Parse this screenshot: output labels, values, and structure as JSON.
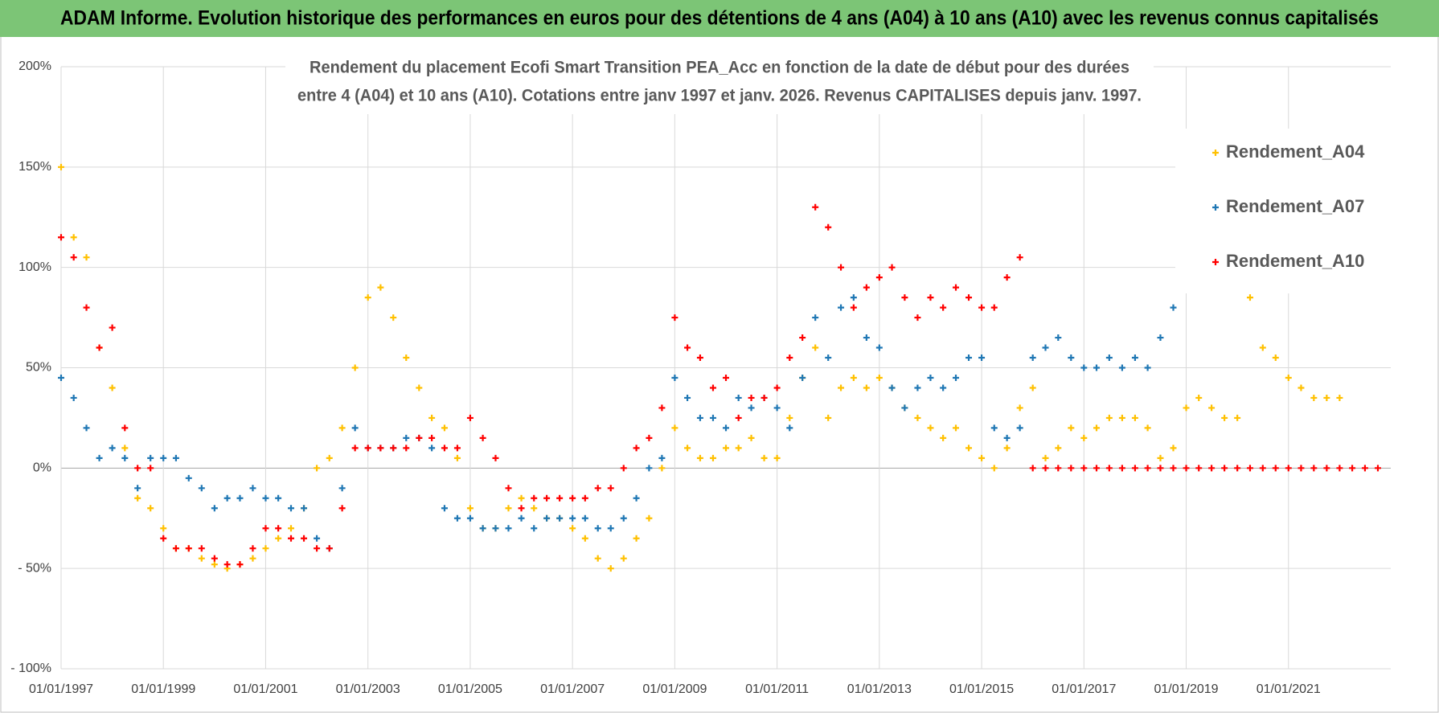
{
  "header": {
    "title": "ADAM Informe. Evolution historique des performances en euros pour des détentions de 4 ans (A04) à 10 ans (A10) avec les revenus connus capitalisés"
  },
  "chart_data": {
    "type": "scatter",
    "title": [
      "Rendement du placement Ecofi Smart Transition PEA_Acc en fonction de la date de début pour des durées",
      "entre 4 (A04) et 10 ans (A10). Cotations entre janv 1997 et janv. 2026. Revenus CAPITALISES depuis janv. 1997."
    ],
    "x": [
      "1997-01-01",
      "1997-04-01",
      "1997-07-01",
      "1997-10-01",
      "1998-01-01",
      "1998-04-01",
      "1998-07-01",
      "1998-10-01",
      "1999-01-01",
      "1999-04-01",
      "1999-07-01",
      "1999-10-01",
      "2000-01-01",
      "2000-04-01",
      "2000-07-01",
      "2000-10-01",
      "2001-01-01",
      "2001-04-01",
      "2001-07-01",
      "2001-10-01",
      "2002-01-01",
      "2002-04-01",
      "2002-07-01",
      "2002-10-01",
      "2003-01-01",
      "2003-04-01",
      "2003-07-01",
      "2003-10-01",
      "2004-01-01",
      "2004-04-01",
      "2004-07-01",
      "2004-10-01",
      "2005-01-01",
      "2005-04-01",
      "2005-07-01",
      "2005-10-01",
      "2006-01-01",
      "2006-04-01",
      "2006-07-01",
      "2006-10-01",
      "2007-01-01",
      "2007-04-01",
      "2007-07-01",
      "2007-10-01",
      "2008-01-01",
      "2008-04-01",
      "2008-07-01",
      "2008-10-01",
      "2009-01-01",
      "2009-04-01",
      "2009-07-01",
      "2009-10-01",
      "2010-01-01",
      "2010-04-01",
      "2010-07-01",
      "2010-10-01",
      "2011-01-01",
      "2011-04-01",
      "2011-07-01",
      "2011-10-01",
      "2012-01-01",
      "2012-04-01",
      "2012-07-01",
      "2012-10-01",
      "2013-01-01",
      "2013-04-01",
      "2013-07-01",
      "2013-10-01",
      "2014-01-01",
      "2014-04-01",
      "2014-07-01",
      "2014-10-01",
      "2015-01-01",
      "2015-04-01",
      "2015-07-01",
      "2015-10-01",
      "2016-01-01",
      "2016-04-01",
      "2016-07-01",
      "2016-10-01",
      "2017-01-01",
      "2017-04-01",
      "2017-07-01",
      "2017-10-01",
      "2018-01-01",
      "2018-04-01",
      "2018-07-01",
      "2018-10-01",
      "2019-01-01",
      "2019-04-01",
      "2019-07-01",
      "2019-10-01",
      "2020-01-01",
      "2020-04-01",
      "2020-07-01",
      "2020-10-01",
      "2021-01-01",
      "2021-04-01",
      "2021-07-01",
      "2021-10-01",
      "2022-01-01",
      "2022-04-01",
      "2022-07-01",
      "2022-10-01"
    ],
    "series": [
      {
        "name": "Rendement_A04",
        "color": "#ffc000",
        "values": [
          150,
          115,
          105,
          60,
          40,
          10,
          -15,
          -20,
          -30,
          -40,
          -40,
          -45,
          -48,
          -50,
          -48,
          -45,
          -40,
          -35,
          -30,
          -20,
          0,
          5,
          20,
          50,
          85,
          90,
          75,
          55,
          40,
          25,
          20,
          5,
          -20,
          -30,
          -30,
          -20,
          -15,
          -20,
          -25,
          -25,
          -30,
          -35,
          -45,
          -50,
          -45,
          -35,
          -25,
          0,
          20,
          10,
          5,
          5,
          10,
          10,
          15,
          5,
          5,
          25,
          45,
          60,
          25,
          40,
          45,
          40,
          45,
          40,
          30,
          25,
          20,
          15,
          20,
          10,
          5,
          0,
          10,
          30,
          40,
          5,
          10,
          20,
          15,
          20,
          25,
          25,
          25,
          20,
          5,
          10,
          30,
          35,
          30,
          25,
          25,
          85,
          60,
          55,
          45,
          40,
          35,
          35,
          35,
          null,
          null,
          null
        ]
      },
      {
        "name": "Rendement_A07",
        "color": "#1f77b4",
        "values": [
          45,
          35,
          20,
          5,
          10,
          5,
          -10,
          5,
          5,
          5,
          -5,
          -10,
          -20,
          -15,
          -15,
          -10,
          -15,
          -15,
          -20,
          -20,
          -35,
          -40,
          -10,
          20,
          10,
          10,
          10,
          15,
          15,
          10,
          -20,
          -25,
          -25,
          -30,
          -30,
          -30,
          -25,
          -30,
          -25,
          -25,
          -25,
          -25,
          -30,
          -30,
          -25,
          -15,
          0,
          5,
          45,
          35,
          25,
          25,
          20,
          35,
          30,
          35,
          30,
          20,
          45,
          75,
          55,
          80,
          85,
          65,
          60,
          40,
          30,
          40,
          45,
          40,
          45,
          55,
          55,
          20,
          15,
          20,
          55,
          60,
          65,
          55,
          50,
          50,
          55,
          50,
          55,
          50,
          65,
          80,
          null,
          null,
          null,
          null,
          null,
          null,
          null,
          null,
          null,
          null,
          null,
          null,
          null,
          null,
          null,
          null
        ]
      },
      {
        "name": "Rendement_A10",
        "color": "#ff0000",
        "values": [
          115,
          105,
          80,
          60,
          70,
          20,
          0,
          0,
          -35,
          -40,
          -40,
          -40,
          -45,
          -48,
          -48,
          -40,
          -30,
          -30,
          -35,
          -35,
          -40,
          -40,
          -20,
          10,
          10,
          10,
          10,
          10,
          15,
          15,
          10,
          10,
          25,
          15,
          5,
          -10,
          -20,
          -15,
          -15,
          -15,
          -15,
          -15,
          -10,
          -10,
          0,
          10,
          15,
          30,
          75,
          60,
          55,
          40,
          45,
          25,
          35,
          35,
          40,
          55,
          65,
          130,
          120,
          100,
          80,
          90,
          95,
          100,
          85,
          75,
          85,
          80,
          90,
          85,
          80,
          80,
          95,
          105,
          0,
          0,
          0,
          0,
          0,
          0,
          0,
          0,
          0,
          0,
          0,
          0,
          0,
          0,
          0,
          0,
          0,
          0,
          0,
          0,
          0,
          0,
          0,
          0,
          0,
          0,
          0,
          0
        ]
      }
    ],
    "xlim": [
      "1997-01-01",
      "2023-01-01"
    ],
    "xticks": [
      {
        "value": "1997-01-01",
        "label": "01/01/1997"
      },
      {
        "value": "1999-01-01",
        "label": "01/01/1999"
      },
      {
        "value": "2001-01-01",
        "label": "01/01/2001"
      },
      {
        "value": "2003-01-01",
        "label": "01/01/2003"
      },
      {
        "value": "2005-01-01",
        "label": "01/01/2005"
      },
      {
        "value": "2007-01-01",
        "label": "01/01/2007"
      },
      {
        "value": "2009-01-01",
        "label": "01/01/2009"
      },
      {
        "value": "2011-01-01",
        "label": "01/01/2011"
      },
      {
        "value": "2013-01-01",
        "label": "01/01/2013"
      },
      {
        "value": "2015-01-01",
        "label": "01/01/2015"
      },
      {
        "value": "2017-01-01",
        "label": "01/01/2017"
      },
      {
        "value": "2019-01-01",
        "label": "01/01/2019"
      },
      {
        "value": "2021-01-01",
        "label": "01/01/2021"
      }
    ],
    "ylim": [
      -100,
      200
    ],
    "yticks": [
      {
        "value": -100,
        "label": "- 100%"
      },
      {
        "value": -50,
        "label": "- 50%"
      },
      {
        "value": 0,
        "label": "0%"
      },
      {
        "value": 50,
        "label": "50%"
      },
      {
        "value": 100,
        "label": "100%"
      },
      {
        "value": 150,
        "label": "150%"
      },
      {
        "value": 200,
        "label": "200%"
      }
    ],
    "grid": true,
    "legend": "upper right"
  }
}
